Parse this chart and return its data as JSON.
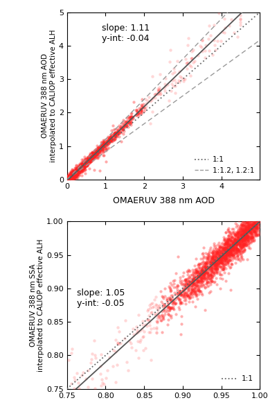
{
  "top_plot": {
    "xlim": [
      0,
      5
    ],
    "ylim": [
      0,
      5
    ],
    "xticks": [
      0,
      1,
      2,
      3,
      4
    ],
    "yticks": [
      0,
      1,
      2,
      3,
      4,
      5
    ],
    "xlabel": "OMAERUV 388 nm AOD",
    "ylabel": "OMAERUV 388 nm AOD\ninterpolated to CALIOP effective ALH",
    "slope": 1.11,
    "yint": -0.04,
    "annotation": "slope: 1.11\ny-int: -0.04",
    "legend_labels": [
      "1:1",
      "1:1.2, 1.2:1"
    ],
    "dot_color": "#FF2222",
    "scatter_seed": 42
  },
  "bottom_plot": {
    "xlim": [
      0.75,
      1.0
    ],
    "ylim": [
      0.75,
      1.0
    ],
    "xticks": [
      0.75,
      0.8,
      0.85,
      0.9,
      0.95,
      1.0
    ],
    "yticks": [
      0.75,
      0.8,
      0.85,
      0.9,
      0.95,
      1.0
    ],
    "xlabel": "",
    "ylabel": "OMAERUV 388 nm SSA\ninterpolated to CALIOP effective ALH",
    "slope": 1.05,
    "yint": -0.05,
    "annotation": "slope: 1.05\ny-int: -0.05",
    "legend_label": "1:1",
    "dot_color": "#FF2222",
    "scatter_seed": 7
  },
  "bg_color": "#FFFFFF",
  "line_color_reg": "#555555",
  "line_color_11": "#666666",
  "line_color_12": "#999999",
  "xlabel_center": "OMAERUV 388 nm AOD"
}
